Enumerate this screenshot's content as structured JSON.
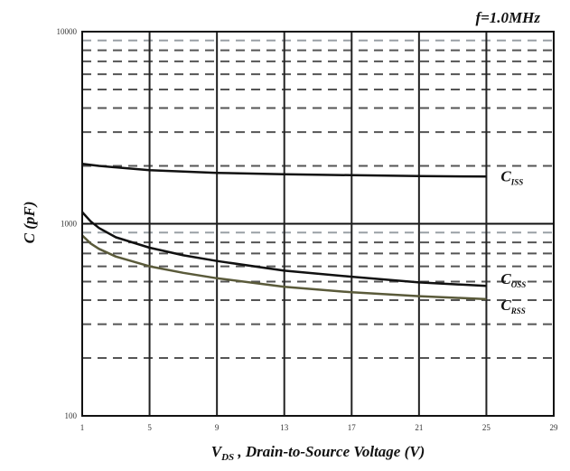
{
  "chart_data": {
    "type": "line",
    "annotation": "f=1.0MHz",
    "xlabel_main": "V",
    "xlabel_sub": "DS",
    "xlabel_rest": " , Drain-to-Source Voltage (V)",
    "ylabel": "C (pF)",
    "x_ticks": [
      "1",
      "5",
      "9",
      "13",
      "17",
      "21",
      "25",
      "29"
    ],
    "y_ticks": [
      "10000",
      "1000",
      "100"
    ],
    "xlim": [
      1,
      29
    ],
    "ylim": [
      100,
      10000
    ],
    "y_scale": "log",
    "grid": true,
    "series": [
      {
        "name_main": "C",
        "name_sub": "ISS",
        "color": "#111111",
        "x": [
          1,
          2,
          5,
          9,
          13,
          17,
          21,
          25
        ],
        "y": [
          2050,
          2000,
          1900,
          1840,
          1810,
          1790,
          1770,
          1760
        ]
      },
      {
        "name_main": "C",
        "name_sub": "OSS",
        "color": "#111111",
        "x": [
          1,
          1.5,
          2,
          3,
          5,
          7,
          9,
          13,
          17,
          21,
          25
        ],
        "y": [
          1150,
          1030,
          950,
          850,
          750,
          685,
          640,
          570,
          530,
          495,
          475
        ]
      },
      {
        "name_main": "C",
        "name_sub": "RSS",
        "color": "#5a5a3a",
        "x": [
          1,
          1.5,
          2,
          3,
          5,
          7,
          9,
          13,
          17,
          21,
          25
        ],
        "y": [
          870,
          790,
          740,
          675,
          600,
          555,
          520,
          470,
          440,
          420,
          405
        ]
      }
    ]
  }
}
